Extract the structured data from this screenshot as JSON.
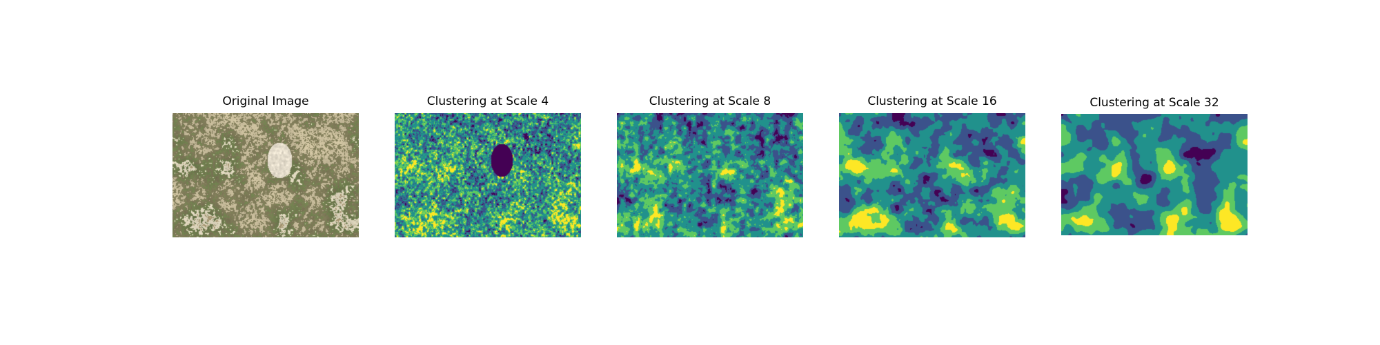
{
  "panels": [
    {
      "title": "Original Image",
      "kind": "photo",
      "description_icon": "aerial-vegetation-photo",
      "palette": [
        "#b9a982",
        "#a89a74",
        "#8a8660",
        "#cfc3a1",
        "#7e7a58",
        "#6f7d4e",
        "#d8d0b8",
        "#9a8c6a"
      ]
    },
    {
      "title": "Clustering at Scale 4",
      "kind": "cluster-map",
      "clusters": 5,
      "palette": [
        "#440154",
        "#3b528b",
        "#21918c",
        "#5ec962",
        "#fde725"
      ]
    },
    {
      "title": "Clustering at Scale 8",
      "kind": "cluster-map",
      "clusters": 5,
      "palette": [
        "#440154",
        "#3b528b",
        "#21918c",
        "#5ec962",
        "#fde725"
      ]
    },
    {
      "title": "Clustering at Scale 16",
      "kind": "cluster-map",
      "clusters": 5,
      "palette": [
        "#440154",
        "#3b528b",
        "#21918c",
        "#5ec962",
        "#fde725"
      ]
    },
    {
      "title": "Clustering at Scale 32",
      "kind": "cluster-map",
      "clusters": 5,
      "palette": [
        "#440154",
        "#3b528b",
        "#21918c",
        "#5ec962",
        "#fde725"
      ]
    }
  ]
}
